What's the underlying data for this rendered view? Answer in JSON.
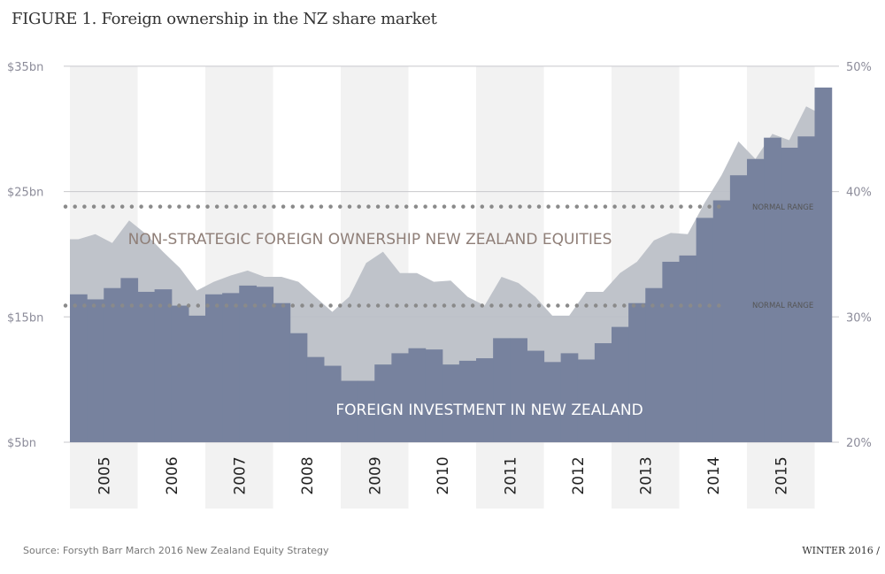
{
  "title": "FIGURE 1. Foreign ownership in the NZ share market",
  "source": "Source: Forsyth Barr March 2016 New Zealand Equity Strategy",
  "issue": "WINTER 2016 /",
  "colors": {
    "investment": "#77829e",
    "ownership": "#bcc0c7",
    "band": "#f2f2f2",
    "dotted": "#8a8a8a",
    "ownership_label": "#8f7f78"
  },
  "chart_data": {
    "type": "area",
    "x_labels": [
      "2005",
      "2006",
      "2007",
      "2008",
      "2009",
      "2010",
      "2011",
      "2012",
      "2013",
      "2014",
      "2015"
    ],
    "x_unit": "quarter (2005 Q1 – 2016 Q1)",
    "left_axis": {
      "ticks": [
        "$5bn",
        "$15bn",
        "$25bn",
        "$35bn"
      ],
      "range": [
        5,
        35
      ]
    },
    "right_axis": {
      "ticks": [
        "20%",
        "30%",
        "40%",
        "50%"
      ],
      "range": [
        20,
        50
      ]
    },
    "grid": true,
    "series": [
      {
        "name": "FOREIGN INVESTMENT IN NEW ZEALAND",
        "style": "step",
        "axis": "left",
        "values": [
          16.8,
          16.4,
          17.3,
          18.1,
          17.0,
          17.2,
          15.9,
          15.1,
          16.8,
          16.9,
          17.5,
          17.4,
          16.1,
          13.7,
          11.8,
          11.1,
          9.9,
          9.9,
          11.2,
          12.1,
          12.5,
          12.4,
          11.2,
          11.5,
          11.7,
          13.3,
          13.3,
          12.3,
          11.4,
          12.1,
          11.6,
          12.9,
          14.2,
          16.1,
          17.3,
          19.4,
          19.9,
          22.9,
          24.3,
          26.3,
          27.6,
          29.3,
          28.5,
          29.4,
          33.3
        ]
      },
      {
        "name": "NON-STRATEGIC FOREIGN OWNERSHIP NEW ZEALAND EQUITIES",
        "style": "area",
        "axis": "right",
        "values": [
          36.2,
          36.6,
          35.9,
          37.7,
          36.6,
          35.2,
          33.9,
          32.1,
          32.8,
          33.3,
          33.7,
          33.2,
          33.2,
          32.8,
          31.6,
          30.4,
          31.6,
          34.3,
          35.2,
          33.5,
          33.5,
          32.8,
          32.9,
          31.6,
          30.9,
          33.2,
          32.7,
          31.6,
          30.1,
          30.1,
          32.0,
          32.0,
          33.5,
          34.4,
          36.1,
          36.7,
          36.6,
          39.1,
          41.3,
          44.0,
          42.6,
          44.6,
          44.1,
          46.8,
          46.1
        ]
      }
    ],
    "annotations": [
      {
        "text": "NORMAL RANGE",
        "value_pct": 38.8
      },
      {
        "text": "NORMAL RANGE",
        "value_pct": 30.9
      }
    ]
  }
}
